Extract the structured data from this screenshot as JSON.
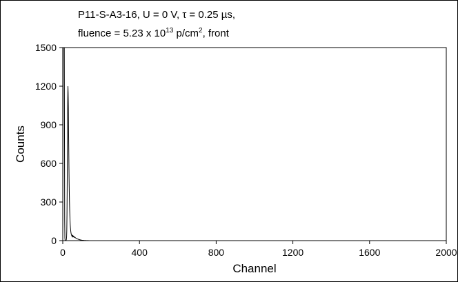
{
  "chart_data": {
    "type": "line",
    "title_line1": "P11-S-A3-16, U = 0 V, τ = 0.25 µs,",
    "title_line2": {
      "before": "fluence = 5.23 x 10",
      "exponent": "13",
      "middle": " p/cm",
      "superscript2": "2",
      "after": ", front"
    },
    "xlabel": "Channel",
    "ylabel": "Counts",
    "xlim": [
      0,
      2000
    ],
    "ylim": [
      0,
      1500
    ],
    "x_ticks": [
      0,
      400,
      800,
      1200,
      1600,
      2000
    ],
    "y_ticks": [
      0,
      300,
      600,
      900,
      1200,
      1500
    ],
    "grid": false,
    "series": [
      {
        "color": "#000000",
        "x": [
          0,
          2,
          4,
          6,
          8,
          9,
          10,
          11,
          12,
          13,
          14,
          15,
          16,
          17,
          18,
          19,
          20,
          21,
          22,
          23,
          24,
          25,
          26,
          27,
          28,
          29,
          30,
          31,
          32,
          33,
          34,
          35,
          36,
          37,
          38,
          39,
          40,
          41,
          42,
          43,
          44,
          45,
          46,
          47,
          48,
          49,
          50,
          52,
          54,
          56,
          58,
          60,
          62,
          64,
          66,
          68,
          70,
          72,
          74,
          76,
          78,
          80,
          82,
          84,
          86,
          88,
          90,
          92,
          94,
          96,
          98,
          100,
          105,
          110,
          120,
          140,
          200,
          400,
          800,
          1200,
          1600,
          2000
        ],
        "y": [
          0,
          1500,
          1500,
          1500,
          1500,
          800,
          150,
          20,
          5,
          0,
          0,
          0,
          0,
          2,
          5,
          10,
          30,
          80,
          200,
          400,
          650,
          900,
          1100,
          1200,
          1150,
          1050,
          900,
          750,
          600,
          480,
          380,
          300,
          240,
          190,
          150,
          120,
          100,
          85,
          70,
          60,
          52,
          46,
          42,
          38,
          35,
          38,
          32,
          40,
          30,
          35,
          28,
          30,
          24,
          26,
          22,
          20,
          18,
          16,
          15,
          14,
          12,
          12,
          10,
          8,
          9,
          7,
          6,
          6,
          5,
          4,
          4,
          3,
          3,
          2,
          1,
          0,
          0,
          0,
          0,
          0,
          0,
          0
        ]
      }
    ]
  }
}
